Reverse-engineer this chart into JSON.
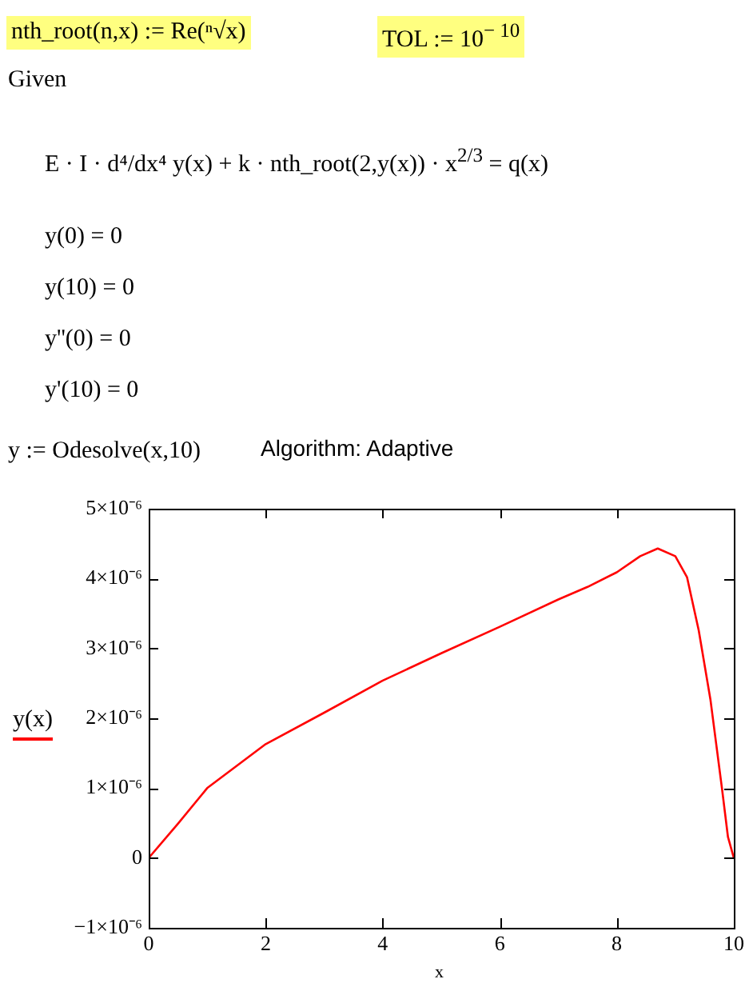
{
  "chart_data": {
    "type": "line",
    "xlabel": "x",
    "ylabel": "y(x)",
    "annotations": [
      "nth_root(n,x) := Re(ⁿ√x)",
      "TOL := 10$^{− 10}$",
      "Given",
      "E · I · d⁴/dx⁴ y(x) + k · nth_root(2,y(x)) · x$^{2/3}$ = q(x)",
      "y(0) = 0",
      "y(10) = 0",
      "y''(0) = 0",
      "y'(10) = 0",
      "y := Odesolve(x,10)",
      "Algorithm: Adaptive"
    ],
    "x": [
      0,
      0.5,
      1,
      2,
      3,
      4,
      5,
      6,
      7,
      7.5,
      8,
      8.4,
      8.7,
      9,
      9.2,
      9.4,
      9.6,
      9.8,
      9.9,
      10
    ],
    "series": [
      {
        "color": "#ff0000",
        "values": [
          0,
          4.9e-07,
          1e-06,
          1.63e-06,
          2.08e-06,
          2.54e-06,
          2.93e-06,
          3.31e-06,
          3.7e-06,
          3.88e-06,
          4.09e-06,
          4.32e-06,
          4.43e-06,
          4.32e-06,
          4.02e-06,
          3.26e-06,
          2.27e-06,
          9.8e-07,
          3e-07,
          0
        ]
      }
    ],
    "xlim": [
      0,
      10
    ],
    "xticks": [
      0,
      2,
      4,
      6,
      8,
      10
    ],
    "ylim": [
      -1e-06,
      5e-06
    ],
    "yticks": [
      {
        "value": -1e-06,
        "label": "−1×10⁻⁶"
      },
      0,
      {
        "value": 1e-06,
        "label": "1×10⁻⁶"
      },
      {
        "value": 2e-06,
        "label": "2×10⁻⁶"
      },
      {
        "value": 3e-06,
        "label": "3×10⁻⁶"
      },
      {
        "value": 4e-06,
        "label": "4×10⁻⁶"
      },
      {
        "value": 5e-06,
        "label": "5×10⁻⁶"
      }
    ],
    "grid": false,
    "legend": false,
    "marker": "none",
    "line_style": "solid"
  }
}
